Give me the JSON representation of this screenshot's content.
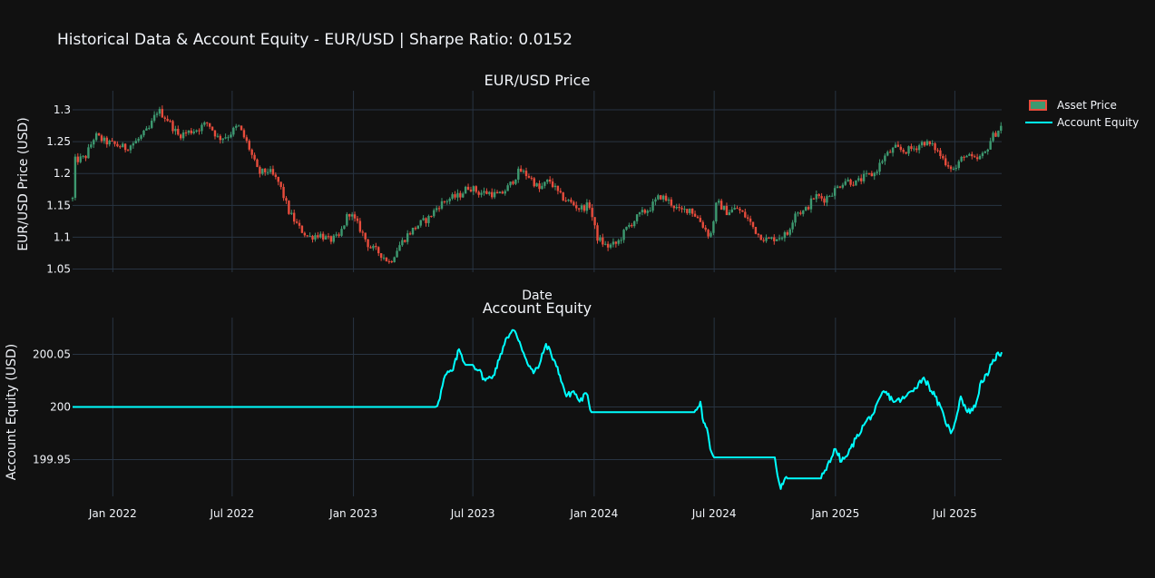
{
  "title": "Historical Data & Account Equity - EUR/USD | Sharpe Ratio: 0.0152",
  "colors": {
    "background": "#111111",
    "grid": "#283442",
    "text": "#f2f5fa",
    "increasing": "#3d9970",
    "decreasing": "#e74c3c",
    "equity": "#00ffff"
  },
  "legend": [
    {
      "name": "Asset Price",
      "icon": "candlestick-icon",
      "color": "#3d9970"
    },
    {
      "name": "Account Equity",
      "icon": "line-icon",
      "color": "#00ffff"
    }
  ],
  "chart_data": [
    {
      "type": "candlestick",
      "title": "EUR/USD Price",
      "ylabel": "EUR/USD Price (USD)",
      "xlabel": "Date",
      "ylim": [
        1.045,
        1.33
      ],
      "xlim": [
        "2021-11-01",
        "2025-09-10"
      ],
      "yticks": [
        1.05,
        1.1,
        1.15,
        1.2,
        1.25,
        1.3
      ],
      "ytick_labels": [
        "1.05",
        "1.1",
        "1.15",
        "1.2",
        "1.25",
        "1.3"
      ],
      "series_name": "Asset Price",
      "grid": true,
      "price_path": [
        [
          "2021-11-01",
          1.16
        ],
        [
          "2021-11-03",
          1.22
        ],
        [
          "2021-11-20",
          1.225
        ],
        [
          "2021-12-05",
          1.26
        ],
        [
          "2021-12-20",
          1.25
        ],
        [
          "2022-01-05",
          1.245
        ],
        [
          "2022-01-20",
          1.24
        ],
        [
          "2022-02-05",
          1.25
        ],
        [
          "2022-02-25",
          1.27
        ],
        [
          "2022-03-10",
          1.3
        ],
        [
          "2022-03-25",
          1.285
        ],
        [
          "2022-04-10",
          1.26
        ],
        [
          "2022-04-25",
          1.265
        ],
        [
          "2022-05-10",
          1.27
        ],
        [
          "2022-05-25",
          1.28
        ],
        [
          "2022-06-10",
          1.255
        ],
        [
          "2022-06-25",
          1.26
        ],
        [
          "2022-07-10",
          1.275
        ],
        [
          "2022-07-25",
          1.245
        ],
        [
          "2022-08-10",
          1.2
        ],
        [
          "2022-08-25",
          1.205
        ],
        [
          "2022-09-10",
          1.185
        ],
        [
          "2022-09-25",
          1.14
        ],
        [
          "2022-10-10",
          1.115
        ],
        [
          "2022-10-25",
          1.1
        ],
        [
          "2022-11-10",
          1.105
        ],
        [
          "2022-11-25",
          1.095
        ],
        [
          "2022-12-10",
          1.1
        ],
        [
          "2022-12-25",
          1.14
        ],
        [
          "2023-01-10",
          1.115
        ],
        [
          "2023-01-25",
          1.085
        ],
        [
          "2023-02-10",
          1.075
        ],
        [
          "2023-02-25",
          1.06
        ],
        [
          "2023-03-10",
          1.085
        ],
        [
          "2023-03-25",
          1.105
        ],
        [
          "2023-04-10",
          1.12
        ],
        [
          "2023-04-25",
          1.13
        ],
        [
          "2023-05-10",
          1.15
        ],
        [
          "2023-05-25",
          1.16
        ],
        [
          "2023-06-10",
          1.165
        ],
        [
          "2023-06-25",
          1.18
        ],
        [
          "2023-07-10",
          1.17
        ],
        [
          "2023-07-25",
          1.17
        ],
        [
          "2023-08-10",
          1.165
        ],
        [
          "2023-08-25",
          1.18
        ],
        [
          "2023-09-10",
          1.205
        ],
        [
          "2023-09-25",
          1.195
        ],
        [
          "2023-10-10",
          1.175
        ],
        [
          "2023-10-25",
          1.19
        ],
        [
          "2023-11-10",
          1.165
        ],
        [
          "2023-11-25",
          1.155
        ],
        [
          "2023-12-10",
          1.145
        ],
        [
          "2023-12-25",
          1.15
        ],
        [
          "2024-01-05",
          1.1
        ],
        [
          "2024-01-20",
          1.085
        ],
        [
          "2024-02-05",
          1.09
        ],
        [
          "2024-02-20",
          1.115
        ],
        [
          "2024-03-10",
          1.135
        ],
        [
          "2024-03-25",
          1.145
        ],
        [
          "2024-04-10",
          1.165
        ],
        [
          "2024-04-25",
          1.155
        ],
        [
          "2024-05-10",
          1.14
        ],
        [
          "2024-05-25",
          1.145
        ],
        [
          "2024-06-10",
          1.125
        ],
        [
          "2024-06-25",
          1.1
        ],
        [
          "2024-07-05",
          1.155
        ],
        [
          "2024-07-20",
          1.14
        ],
        [
          "2024-08-05",
          1.145
        ],
        [
          "2024-08-20",
          1.13
        ],
        [
          "2024-09-05",
          1.105
        ],
        [
          "2024-09-20",
          1.095
        ],
        [
          "2024-10-05",
          1.1
        ],
        [
          "2024-10-20",
          1.105
        ],
        [
          "2024-11-01",
          1.14
        ],
        [
          "2024-11-15",
          1.14
        ],
        [
          "2024-12-01",
          1.165
        ],
        [
          "2024-12-15",
          1.16
        ],
        [
          "2025-01-01",
          1.175
        ],
        [
          "2025-01-15",
          1.19
        ],
        [
          "2025-02-01",
          1.185
        ],
        [
          "2025-02-15",
          1.195
        ],
        [
          "2025-03-01",
          1.2
        ],
        [
          "2025-03-15",
          1.225
        ],
        [
          "2025-04-01",
          1.24
        ],
        [
          "2025-04-15",
          1.235
        ],
        [
          "2025-05-01",
          1.24
        ],
        [
          "2025-05-15",
          1.25
        ],
        [
          "2025-06-01",
          1.24
        ],
        [
          "2025-06-15",
          1.22
        ],
        [
          "2025-07-01",
          1.205
        ],
        [
          "2025-07-15",
          1.23
        ],
        [
          "2025-08-01",
          1.22
        ],
        [
          "2025-08-15",
          1.23
        ],
        [
          "2025-08-25",
          1.255
        ],
        [
          "2025-09-10",
          1.275
        ]
      ]
    },
    {
      "type": "line",
      "title": "Account Equity",
      "ylabel": "Account Equity (USD)",
      "xlabel": "",
      "ylim": [
        199.915,
        200.085
      ],
      "xlim": [
        "2021-11-01",
        "2025-09-10"
      ],
      "yticks": [
        199.95,
        200,
        200.05
      ],
      "ytick_labels": [
        "199.95",
        "200",
        "200.05"
      ],
      "xticks": [
        "2022-01-01",
        "2022-07-01",
        "2023-01-01",
        "2023-07-01",
        "2024-01-01",
        "2024-07-01",
        "2025-01-01",
        "2025-07-01"
      ],
      "xtick_labels": [
        "Jan 2022",
        "Jul 2022",
        "Jan 2023",
        "Jul 2023",
        "Jan 2024",
        "Jul 2024",
        "Jan 2025",
        "Jul 2025"
      ],
      "series_name": "Account Equity",
      "grid": true,
      "points": [
        [
          "2021-11-01",
          200
        ],
        [
          "2023-05-05",
          200
        ],
        [
          "2023-05-10",
          200.005
        ],
        [
          "2023-05-20",
          200.03
        ],
        [
          "2023-06-01",
          200.035
        ],
        [
          "2023-06-10",
          200.055
        ],
        [
          "2023-06-20",
          200.04
        ],
        [
          "2023-07-01",
          200.04
        ],
        [
          "2023-07-10",
          200.035
        ],
        [
          "2023-07-20",
          200.025
        ],
        [
          "2023-08-01",
          200.03
        ],
        [
          "2023-08-10",
          200.045
        ],
        [
          "2023-08-20",
          200.065
        ],
        [
          "2023-09-01",
          200.073
        ],
        [
          "2023-09-10",
          200.062
        ],
        [
          "2023-09-20",
          200.045
        ],
        [
          "2023-10-01",
          200.032
        ],
        [
          "2023-10-10",
          200.04
        ],
        [
          "2023-10-20",
          200.06
        ],
        [
          "2023-11-01",
          200.045
        ],
        [
          "2023-11-10",
          200.03
        ],
        [
          "2023-11-20",
          200.01
        ],
        [
          "2023-12-01",
          200.015
        ],
        [
          "2023-12-10",
          200.005
        ],
        [
          "2023-12-20",
          200.013
        ],
        [
          "2023-12-28",
          199.995
        ],
        [
          "2024-06-01",
          199.995
        ],
        [
          "2024-06-10",
          200.005
        ],
        [
          "2024-06-15",
          199.985
        ],
        [
          "2024-06-20",
          199.98
        ],
        [
          "2024-06-25",
          199.96
        ],
        [
          "2024-07-01",
          199.952
        ],
        [
          "2024-10-01",
          199.952
        ],
        [
          "2024-10-05",
          199.935
        ],
        [
          "2024-10-10",
          199.922
        ],
        [
          "2024-10-15",
          199.93
        ],
        [
          "2024-10-20",
          199.932
        ],
        [
          "2024-12-10",
          199.932
        ],
        [
          "2024-12-20",
          199.945
        ],
        [
          "2025-01-01",
          199.96
        ],
        [
          "2025-01-10",
          199.948
        ],
        [
          "2025-01-20",
          199.955
        ],
        [
          "2025-02-01",
          199.97
        ],
        [
          "2025-02-15",
          199.985
        ],
        [
          "2025-03-01",
          199.995
        ],
        [
          "2025-03-15",
          200.015
        ],
        [
          "2025-04-01",
          200.005
        ],
        [
          "2025-04-15",
          200.008
        ],
        [
          "2025-05-01",
          200.018
        ],
        [
          "2025-05-15",
          200.028
        ],
        [
          "2025-06-01",
          200.01
        ],
        [
          "2025-06-15",
          199.99
        ],
        [
          "2025-06-25",
          199.975
        ],
        [
          "2025-07-01",
          199.985
        ],
        [
          "2025-07-10",
          200.01
        ],
        [
          "2025-07-20",
          199.995
        ],
        [
          "2025-08-01",
          200.0
        ],
        [
          "2025-08-10",
          200.025
        ],
        [
          "2025-08-20",
          200.03
        ],
        [
          "2025-08-28",
          200.045
        ],
        [
          "2025-09-10",
          200.052
        ]
      ]
    }
  ]
}
